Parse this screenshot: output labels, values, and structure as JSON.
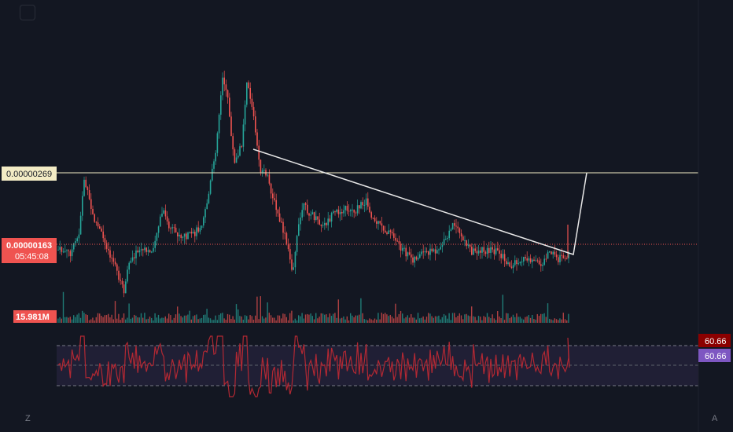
{
  "chart_data": {
    "type": "candlestick",
    "price_ylim": [
      7.3e-07,
      4.4e-06
    ],
    "resistance_level": "0.00000269",
    "current_price": "0.00000163",
    "countdown": "05:45:08",
    "volume_label": "15.981M",
    "rsi": {
      "value_1": "60.66",
      "value_2": "60.66",
      "ylim": [
        0,
        100
      ],
      "upper": 70,
      "lower": 30,
      "mid": 50
    },
    "trendline": [
      [
        2.54e-06,
        1.59e-06
      ]
    ],
    "colors": {
      "up": "#26a69a",
      "down": "#ef5350",
      "background": "#131722",
      "resistance": "#f3ecc5",
      "current": "#ef5350",
      "rsi_line": "#b22833",
      "rsi_badge_1": "#8b0000",
      "rsi_badge_2": "#7e57c2",
      "volume_badge": "#ef5350"
    }
  },
  "axis_controls": {
    "left": "Z",
    "right": "A"
  }
}
